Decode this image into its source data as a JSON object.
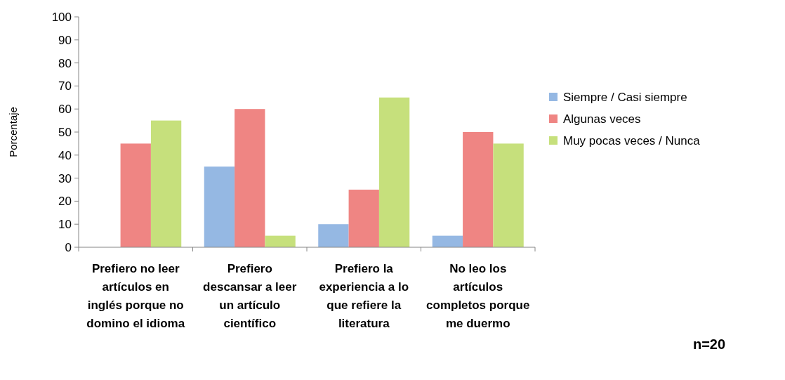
{
  "chart_data": {
    "type": "bar",
    "ylabel": "Porcentaje",
    "categories": [
      "Prefiero no leer artículos en inglés porque no domino el idioma",
      "Prefiero descansar a leer un artículo científico",
      "Prefiero la experiencia a lo que refiere la literatura",
      "No leo los artículos completos porque me duermo"
    ],
    "series": [
      {
        "name": "Siempre / Casi siempre",
        "color": "#95b8e3",
        "values": [
          0,
          35,
          10,
          5
        ]
      },
      {
        "name": "Algunas veces",
        "color": "#ef8583",
        "values": [
          45,
          60,
          25,
          50
        ]
      },
      {
        "name": "Muy pocas veces / Nunca",
        "color": "#c6e07c",
        "values": [
          55,
          5,
          65,
          45
        ]
      }
    ],
    "ylim": [
      0,
      100
    ],
    "yticks": [
      0,
      10,
      20,
      30,
      40,
      50,
      60,
      70,
      80,
      90,
      100
    ],
    "grid": false,
    "legend": "right",
    "annotations": [
      "n=20"
    ]
  }
}
